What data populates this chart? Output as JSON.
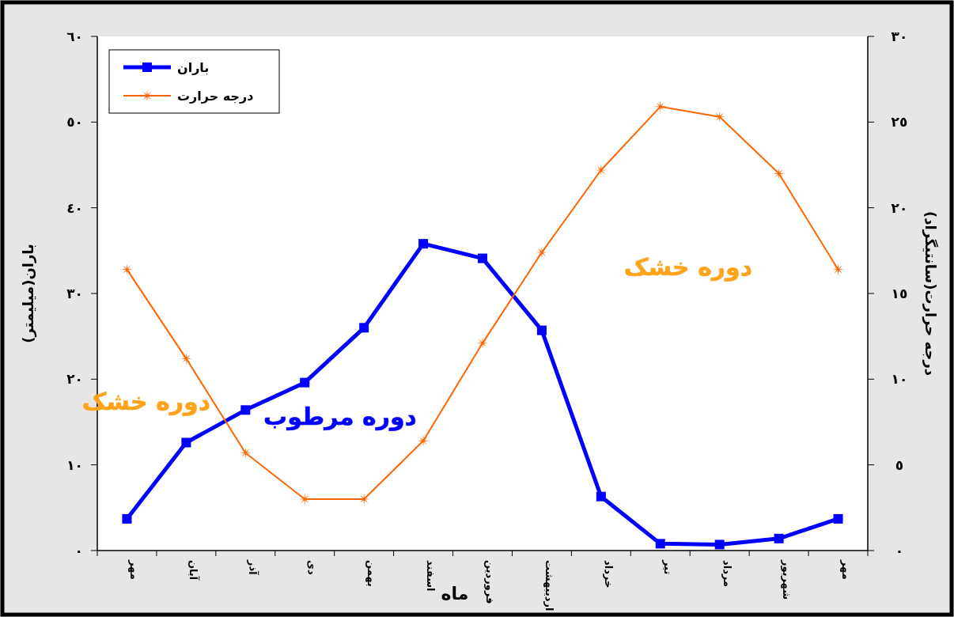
{
  "chart_data": {
    "type": "line",
    "xlabel": "ماه",
    "ylabel": "باران(میلیمتر)",
    "y2label": "درجه حرارت(سانتیگراد)",
    "categories": [
      "مهر",
      "آبان",
      "آذر",
      "دی",
      "بهمن",
      "اسفند",
      "فروردین",
      "اردیبهشت",
      "خرداد",
      "تیر",
      "مرداد",
      "شهریور",
      "مهر"
    ],
    "series": [
      {
        "name": "باران",
        "color": "#0000ff",
        "marker": "square",
        "values": [
          3.7,
          12.6,
          16.4,
          19.6,
          26.0,
          35.8,
          34.1,
          25.7,
          6.3,
          0.8,
          0.7,
          1.4,
          3.7
        ]
      },
      {
        "name": "درجه حرارت",
        "color": "#ff6600",
        "marker": "star",
        "axis": "y2",
        "values": [
          16.4,
          11.2,
          5.7,
          3.0,
          3.0,
          6.4,
          12.1,
          17.4,
          22.2,
          25.9,
          25.3,
          22.0,
          16.4
        ]
      }
    ],
    "ylim": [
      0,
      60
    ],
    "yticks": [
      {
        "value": 0,
        "label": "٠"
      },
      {
        "value": 10,
        "label": "١٠"
      },
      {
        "value": 20,
        "label": "٢٠"
      },
      {
        "value": 30,
        "label": "٣٠"
      },
      {
        "value": 40,
        "label": "٤٠"
      },
      {
        "value": 50,
        "label": "٥٠"
      },
      {
        "value": 60,
        "label": "٦٠"
      }
    ],
    "y2lim": [
      0,
      30
    ],
    "y2ticks": [
      {
        "value": 0,
        "label": "٠"
      },
      {
        "value": 5,
        "label": "٥"
      },
      {
        "value": 10,
        "label": "١٠"
      },
      {
        "value": 15,
        "label": "١٥"
      },
      {
        "value": 20,
        "label": "٢٠"
      },
      {
        "value": 25,
        "label": "٢٥"
      },
      {
        "value": 30,
        "label": "٣٠"
      }
    ],
    "annotations": [
      "دوره خشک",
      "دوره مرطوب",
      "دوره خشک"
    ],
    "legend": "top left",
    "line_style": "solid"
  }
}
